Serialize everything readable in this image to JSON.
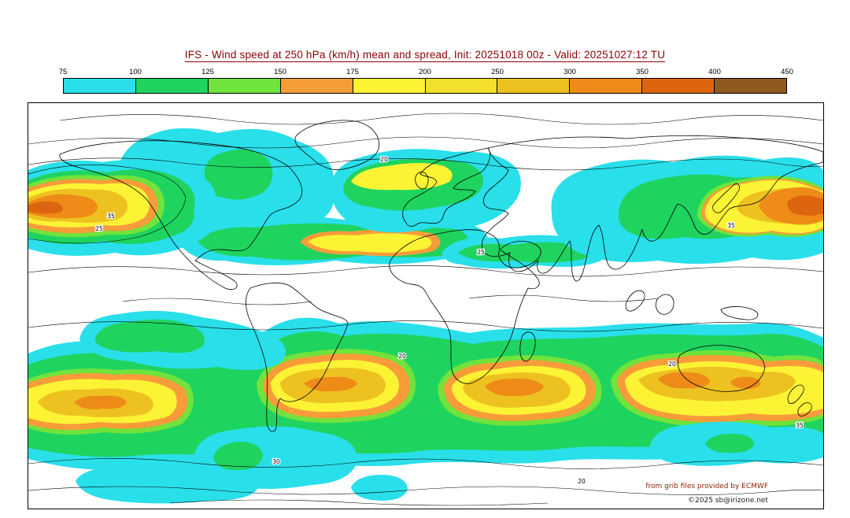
{
  "header": {
    "title": "IFS - Wind speed at 250 hPa (km/h) mean and spread, Init: 20251018 00z - Valid: 20251027:12 TU"
  },
  "chart_data": {
    "type": "heatmap",
    "title": "IFS - Wind speed at 250 hPa (km/h) mean and spread",
    "model": "IFS",
    "variable": "Wind speed at 250 hPa",
    "units": "km/h",
    "statistic": "mean and spread",
    "init": "20251018 00z",
    "valid": "20251027:12 TU",
    "projection": "global equirectangular world map",
    "colorbar": {
      "units": "km/h",
      "ticks": [
        "75",
        "100",
        "125",
        "150",
        "175",
        "200",
        "250",
        "300",
        "350",
        "400",
        "450"
      ],
      "colors": [
        "#29dfea",
        "#1fd35f",
        "#70e33c",
        "#f89c3a",
        "#fdf335",
        "#f2e02c",
        "#edc220",
        "#ee8c17",
        "#dd650e",
        "#8f5a1d"
      ]
    },
    "contour_labels": [
      "35",
      "25",
      "20",
      "25",
      "35",
      "20",
      "20",
      "35",
      "30",
      "20"
    ],
    "features": {
      "nh_jets": "Jet maxima over North Pacific (west map edge) and East Asia / NW Pacific (east map edge), cores 250-350 km/h; weaker bands over North Atlantic, Europe and central Asia 100-200 km/h",
      "sh_jet": "Continuous circumpolar southern jet band with yellow-gold cores 200-300 km/h and isolated orange maxima",
      "spread_contours": "Thin black contours of ensemble spread labelled 20-35 km/h"
    }
  },
  "footer": {
    "credit": "from grib files provided by ECMWF",
    "copyright": "©2025 sb@irizone.net"
  }
}
